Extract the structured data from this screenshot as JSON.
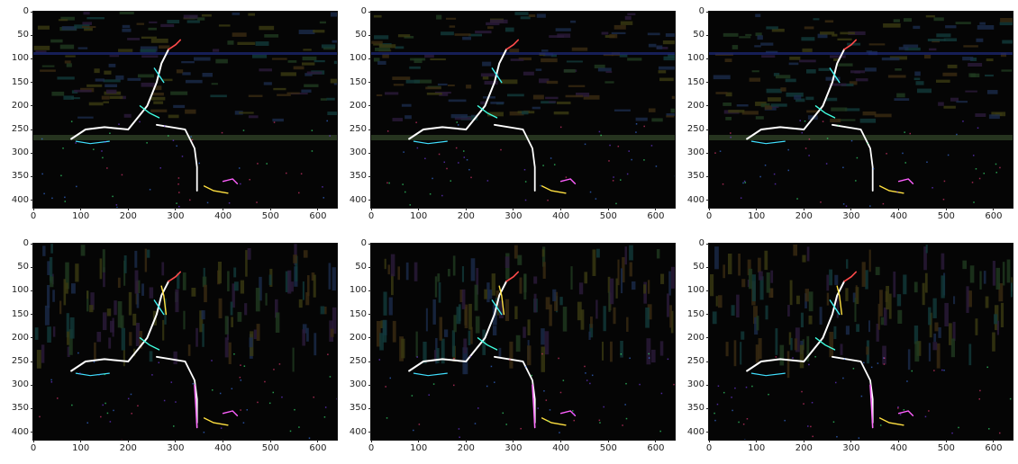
{
  "figure": {
    "grid": "2x3",
    "panels": [
      {
        "row": 0,
        "col": 0,
        "content": "edge-filtered image (horizontal)"
      },
      {
        "row": 0,
        "col": 1,
        "content": "edge-filtered image (horizontal)"
      },
      {
        "row": 0,
        "col": 2,
        "content": "edge-filtered image (horizontal)"
      },
      {
        "row": 1,
        "col": 0,
        "content": "edge-filtered image (vertical)"
      },
      {
        "row": 1,
        "col": 1,
        "content": "edge-filtered image (vertical)"
      },
      {
        "row": 1,
        "col": 2,
        "content": "edge-filtered image (vertical)"
      }
    ],
    "x_ticks": [
      "0",
      "100",
      "200",
      "300",
      "400",
      "500",
      "600"
    ],
    "y_ticks": [
      "0",
      "50",
      "100",
      "150",
      "200",
      "250",
      "300",
      "350",
      "400"
    ],
    "x_range": [
      0,
      640
    ],
    "y_range": [
      0,
      416
    ],
    "colors": {
      "background": "#050505",
      "edges": "#ffffff"
    }
  }
}
